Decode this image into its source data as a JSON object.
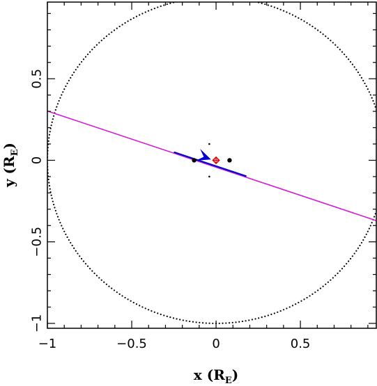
{
  "chart_data": {
    "type": "scatter",
    "xlim": [
      -1,
      0.95
    ],
    "ylim": [
      -1.03,
      0.97
    ],
    "xticks": [
      -1,
      -0.5,
      0,
      0.5
    ],
    "xtick_labels": [
      "−1",
      "−0.5",
      "0",
      "0.5"
    ],
    "yticks": [
      -1,
      -0.5,
      0,
      0.5
    ],
    "ytick_labels": [
      "−1",
      "−0.5",
      "0",
      "0.5"
    ],
    "xlabel": {
      "main": "x (R",
      "sub": "E",
      "close": ")"
    },
    "ylabel": {
      "main": "y (R",
      "sub": "E",
      "close": ")"
    },
    "grid": false,
    "einstein_ring": {
      "center": [
        0,
        0
      ],
      "radius": 1.0,
      "style": "dotted",
      "color": "#000000"
    },
    "source_trajectory": {
      "x": [
        -1.0,
        0.95
      ],
      "y": [
        0.302,
        -0.37
      ],
      "color": "#d31cd6"
    },
    "highlight_segment": {
      "x": [
        -0.25,
        0.18
      ],
      "y": [
        0.05,
        -0.098
      ],
      "color": "#0000cc"
    },
    "direction_arrow": {
      "tail": [
        -0.07,
        0.02
      ],
      "head": [
        -0.03,
        0.005
      ],
      "color": "#0000cc"
    },
    "lens_primary": {
      "x": [
        -0.13
      ],
      "y": [
        0.0
      ],
      "color": "#000000"
    },
    "lens_secondary": {
      "x": [
        0.08
      ],
      "y": [
        0.0
      ],
      "color": "#000000"
    },
    "caustic_points": {
      "x": [
        -0.04,
        -0.04
      ],
      "y": [
        0.1,
        -0.1
      ],
      "color": "#000000"
    },
    "center_of_mass": {
      "x": [
        0.0
      ],
      "y": [
        0.0
      ],
      "color": "#e00000"
    }
  }
}
